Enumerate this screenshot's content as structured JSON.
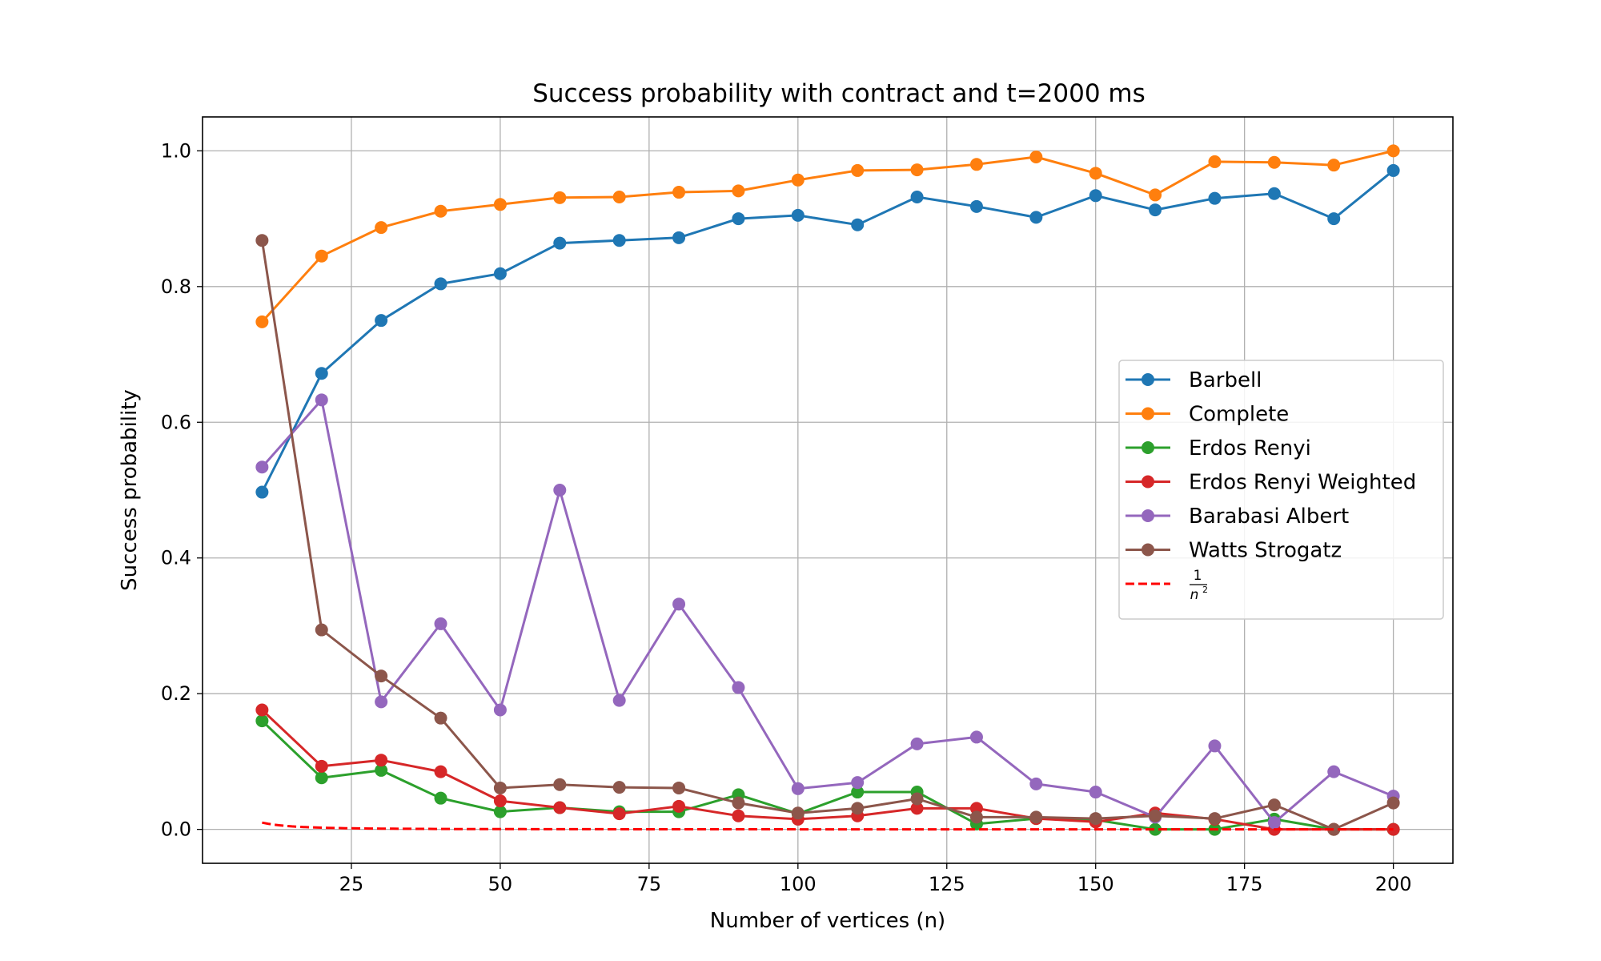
{
  "chart_data": {
    "type": "line",
    "title": "Success probability with contract and t=2000 ms",
    "xlabel": "Number of vertices (n)",
    "ylabel": "Success probability",
    "xlim": [
      0,
      210
    ],
    "ylim": [
      -0.05,
      1.05
    ],
    "xticks": [
      25,
      50,
      75,
      100,
      125,
      150,
      175,
      200
    ],
    "xtick_labels": [
      "25",
      "50",
      "75",
      "100",
      "125",
      "150",
      "175",
      "200"
    ],
    "yticks": [
      0.0,
      0.2,
      0.4,
      0.6,
      0.8,
      1.0
    ],
    "ytick_labels": [
      "0.0",
      "0.2",
      "0.4",
      "0.6",
      "0.8",
      "1.0"
    ],
    "grid": true,
    "legend_position": "center-right",
    "x": [
      10,
      20,
      30,
      40,
      50,
      60,
      70,
      80,
      90,
      100,
      110,
      120,
      130,
      140,
      150,
      160,
      170,
      180,
      190,
      200
    ],
    "series": [
      {
        "name": "Barbell",
        "color": "#1f77b4",
        "marker": "circle",
        "values": [
          0.497,
          0.672,
          0.75,
          0.804,
          0.819,
          0.864,
          0.868,
          0.872,
          0.9,
          0.905,
          0.891,
          0.932,
          0.918,
          0.902,
          0.934,
          0.913,
          0.93,
          0.937,
          0.9,
          0.971
        ]
      },
      {
        "name": "Complete",
        "color": "#ff7f0e",
        "marker": "circle",
        "values": [
          0.748,
          0.845,
          0.887,
          0.911,
          0.921,
          0.931,
          0.932,
          0.939,
          0.941,
          0.957,
          0.971,
          0.972,
          0.98,
          0.991,
          0.967,
          0.935,
          0.984,
          0.983,
          0.979,
          1.0
        ]
      },
      {
        "name": "Erdos Renyi",
        "color": "#2ca02c",
        "marker": "circle",
        "values": [
          0.16,
          0.076,
          0.087,
          0.046,
          0.026,
          0.032,
          0.026,
          0.026,
          0.051,
          0.023,
          0.055,
          0.055,
          0.008,
          0.016,
          0.014,
          0.0,
          0.0,
          0.015,
          0.0,
          0.0
        ]
      },
      {
        "name": "Erdos Renyi Weighted",
        "color": "#d62728",
        "marker": "circle",
        "values": [
          0.176,
          0.093,
          0.102,
          0.085,
          0.042,
          0.032,
          0.023,
          0.034,
          0.02,
          0.015,
          0.02,
          0.031,
          0.031,
          0.016,
          0.011,
          0.024,
          0.015,
          0.0,
          0.0,
          0.0
        ]
      },
      {
        "name": "Barabasi Albert",
        "color": "#9467bd",
        "marker": "circle",
        "values": [
          0.534,
          0.633,
          0.188,
          0.303,
          0.176,
          0.5,
          0.19,
          0.332,
          0.209,
          0.06,
          0.069,
          0.126,
          0.136,
          0.067,
          0.055,
          0.018,
          0.123,
          0.01,
          0.085,
          0.049
        ]
      },
      {
        "name": "Watts Strogatz",
        "color": "#8c564b",
        "marker": "circle",
        "values": [
          0.868,
          0.294,
          0.226,
          0.164,
          0.061,
          0.066,
          0.062,
          0.061,
          0.039,
          0.024,
          0.031,
          0.045,
          0.018,
          0.018,
          0.016,
          0.02,
          0.016,
          0.036,
          0.0,
          0.039
        ]
      }
    ],
    "reference_curve": {
      "name_numerator": "1",
      "name_denominator": "n",
      "name_exponent": "2",
      "color": "#ff0000",
      "style": "dashed",
      "formula": "1/n^2",
      "x_range": [
        10,
        200
      ]
    }
  }
}
